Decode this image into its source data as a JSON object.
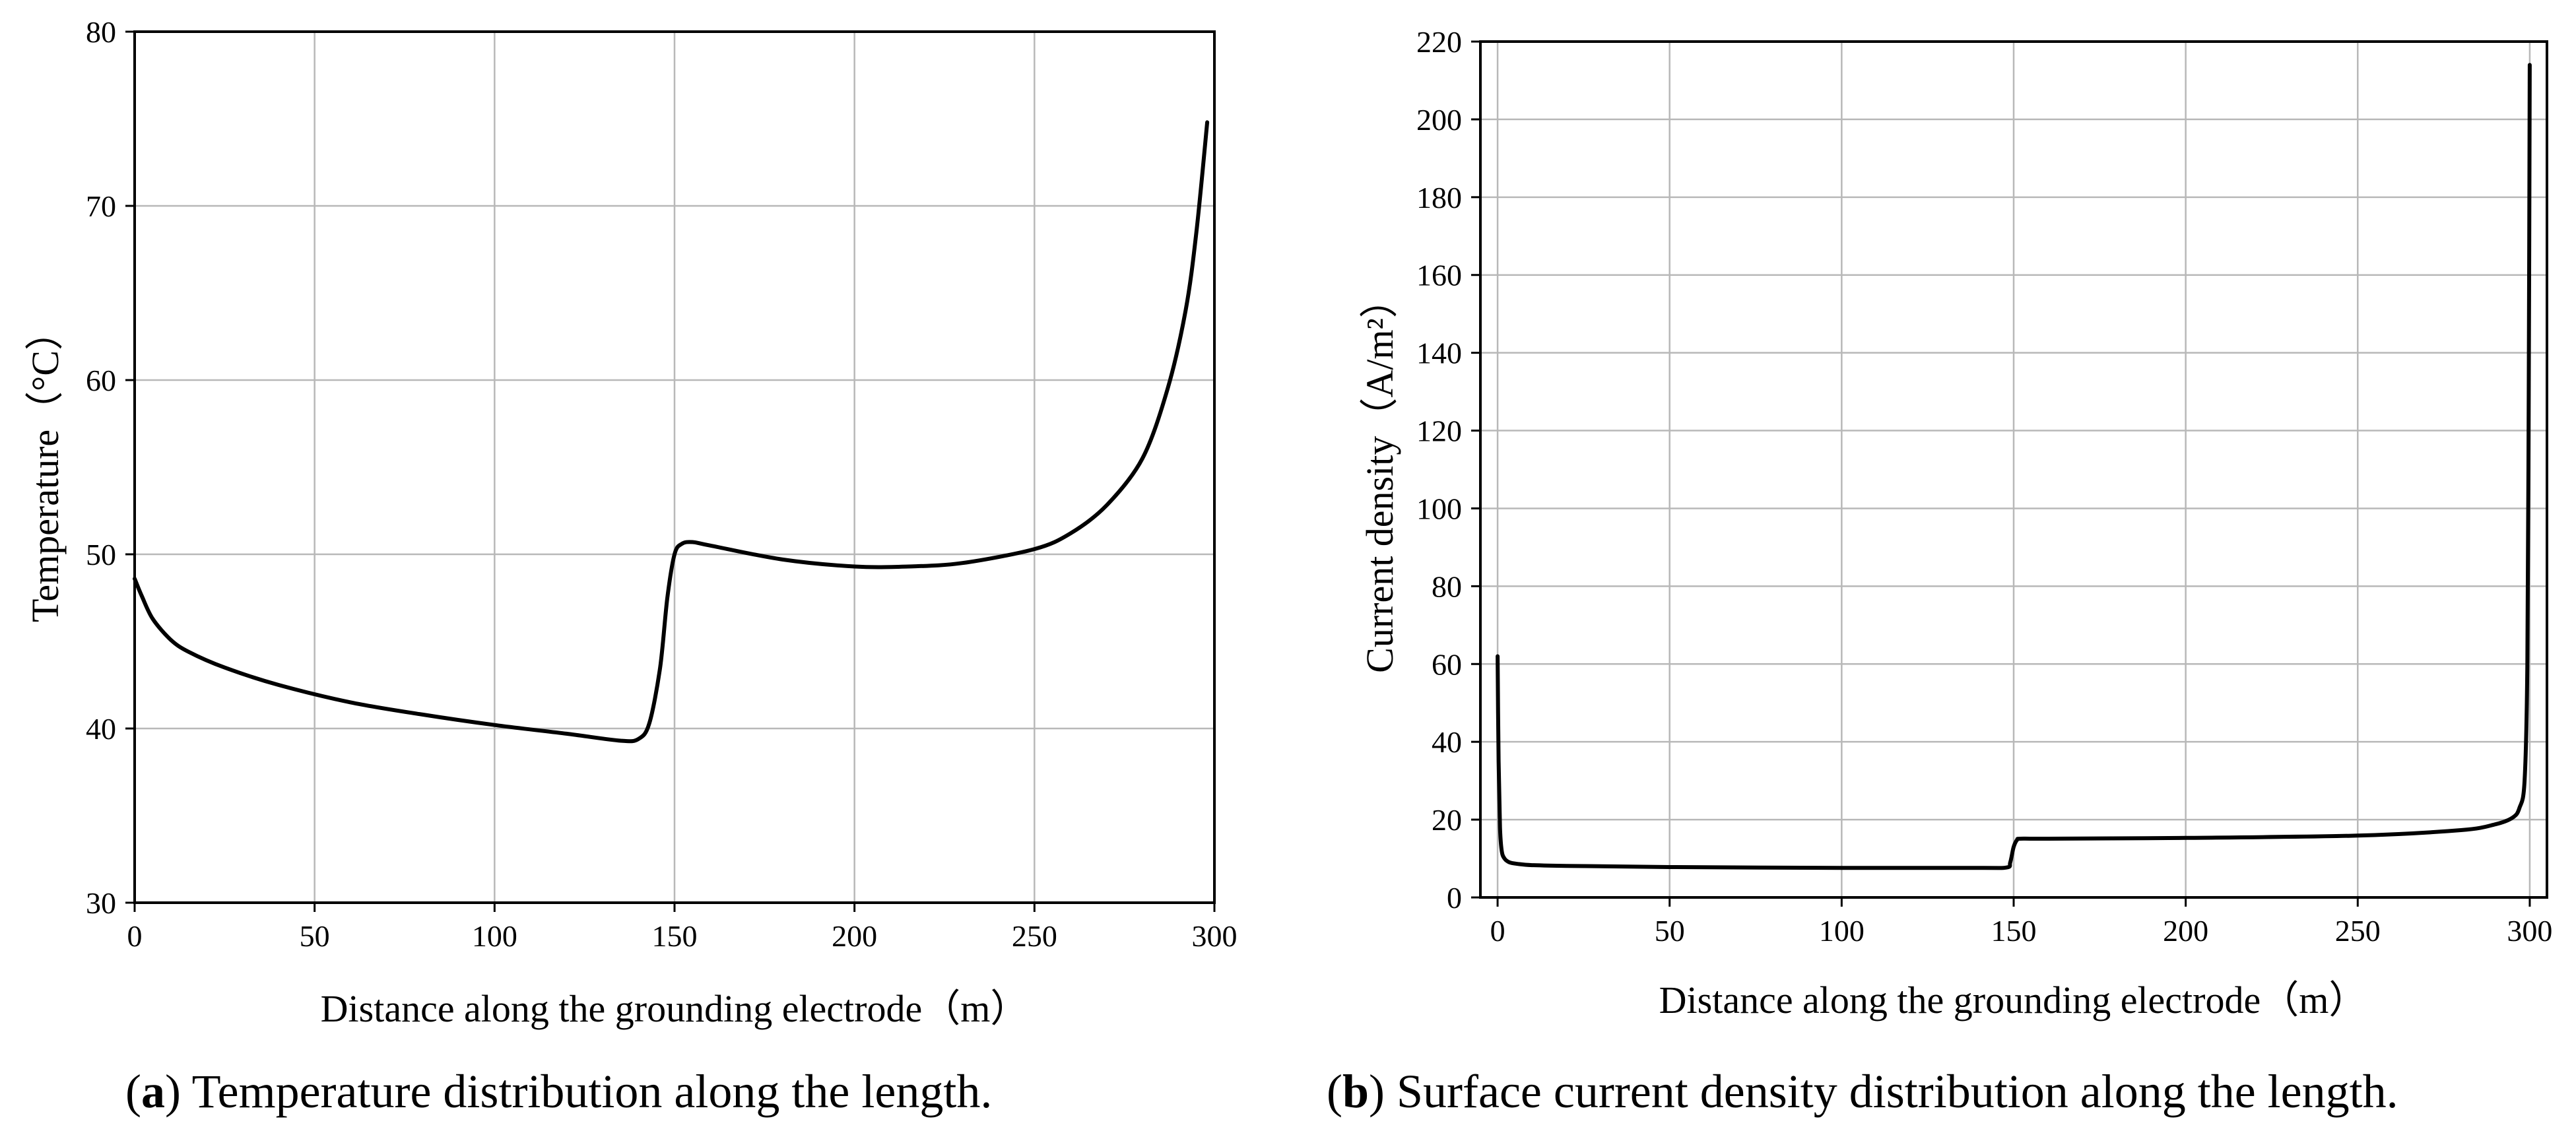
{
  "chart_data": [
    {
      "type": "line",
      "panel": "a",
      "caption_letter": "a",
      "caption_text": "Temperature distribution along the length.",
      "xlabel": "Distance along the grounding electrode（m）",
      "ylabel": "Temperature（°C）",
      "xlim": [
        0,
        300
      ],
      "ylim": [
        30,
        80
      ],
      "xticks": [
        "0",
        "50",
        "100",
        "150",
        "200",
        "250",
        "300"
      ],
      "yticks": [
        "30",
        "40",
        "50",
        "60",
        "70",
        "80"
      ],
      "grid": true,
      "x": [
        0,
        2,
        5,
        10,
        15,
        25,
        40,
        60,
        80,
        100,
        120,
        135,
        140,
        143,
        146,
        148,
        150,
        152,
        155,
        160,
        180,
        200,
        215,
        230,
        250,
        260,
        270,
        280,
        287,
        292,
        295,
        298
      ],
      "y": [
        48.6,
        47.6,
        46.3,
        45.1,
        44.4,
        43.5,
        42.5,
        41.5,
        40.8,
        40.2,
        39.7,
        39.3,
        39.4,
        40.3,
        43.5,
        47.5,
        50.0,
        50.6,
        50.7,
        50.5,
        49.7,
        49.3,
        49.3,
        49.5,
        50.3,
        51.2,
        52.8,
        55.5,
        59.5,
        64.0,
        68.5,
        74.8
      ]
    },
    {
      "type": "line",
      "panel": "b",
      "caption_letter": "b",
      "caption_text": "Surface current density distribution along the length.",
      "xlabel": "Distance along the grounding electrode（m）",
      "ylabel": "Current density（A/m²）",
      "xlim": [
        -5,
        305
      ],
      "ylim": [
        0,
        220
      ],
      "xticks": [
        "0",
        "50",
        "100",
        "150",
        "200",
        "250",
        "300"
      ],
      "yticks": [
        "0",
        "20",
        "40",
        "60",
        "80",
        "100",
        "120",
        "140",
        "160",
        "180",
        "200",
        "220"
      ],
      "grid": true,
      "x": [
        0,
        0.3,
        0.7,
        1.2,
        2,
        3.5,
        6,
        10,
        20,
        50,
        100,
        140,
        148,
        149,
        150,
        151,
        152,
        160,
        200,
        250,
        280,
        290,
        295,
        297,
        298.5,
        299.3,
        299.7,
        300
      ],
      "y": [
        62,
        35,
        18,
        12,
        10,
        9,
        8.6,
        8.3,
        8.1,
        7.8,
        7.6,
        7.6,
        7.7,
        9,
        13,
        14.8,
        15.1,
        15.1,
        15.3,
        15.9,
        17.3,
        18.8,
        20.5,
        23,
        30,
        60,
        130,
        214
      ]
    }
  ]
}
